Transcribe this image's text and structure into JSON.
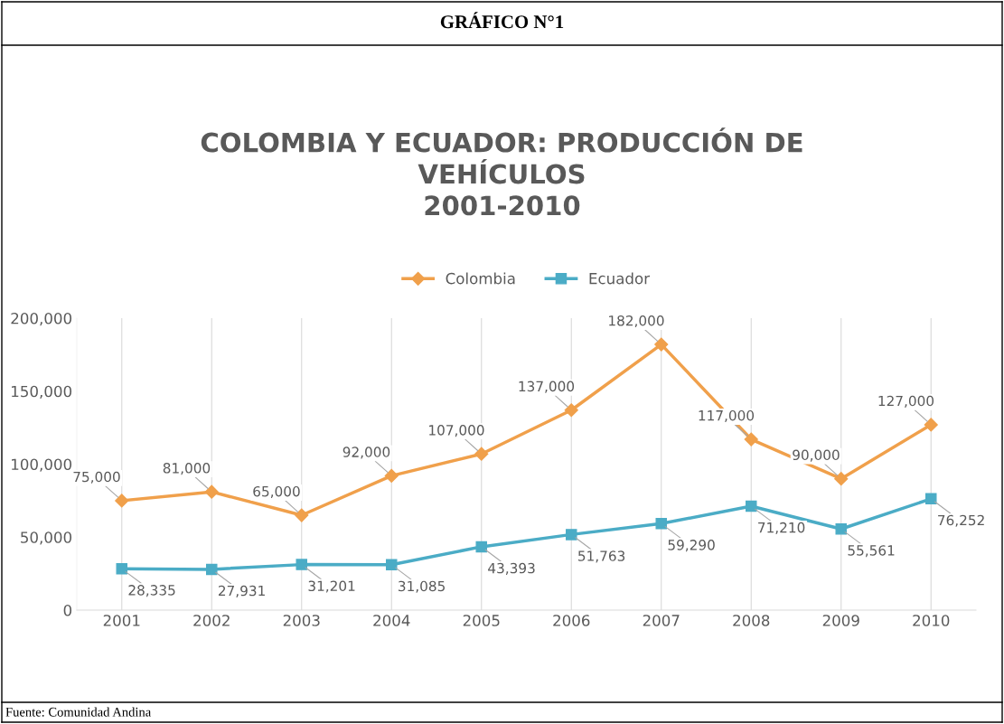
{
  "chart_data": {
    "type": "line",
    "title": "GRÁFICO N°1",
    "subtitle": "COLOMBIA Y ECUADOR: PRODUCCIÓN DE\nVEHÍCULOS\n2001-2010",
    "categories": [
      "2001",
      "2002",
      "2003",
      "2004",
      "2005",
      "2006",
      "2007",
      "2008",
      "2009",
      "2010"
    ],
    "series": [
      {
        "name": "Colombia",
        "color": "#f0a04b",
        "marker": "diamond",
        "values": [
          75000,
          81000,
          65000,
          92000,
          107000,
          137000,
          182000,
          117000,
          90000,
          127000
        ],
        "value_labels": [
          "75,000",
          "81,000",
          "65,000",
          "92,000",
          "107,000",
          "137,000",
          "182,000",
          "117,000",
          "90,000",
          "127,000"
        ]
      },
      {
        "name": "Ecuador",
        "color": "#4bacc6",
        "marker": "square",
        "values": [
          28335,
          27931,
          31201,
          31085,
          43393,
          51763,
          59290,
          71210,
          55561,
          76252
        ],
        "value_labels": [
          "28,335",
          "27,931",
          "31,201",
          "31,085",
          "43,393",
          "51,763",
          "59,290",
          "71,210",
          "55,561",
          "76,252"
        ]
      }
    ],
    "ylim": [
      0,
      200000
    ],
    "yticks": [
      0,
      {
        "value": 50000,
        "label": "50,000"
      },
      {
        "value": 100000,
        "label": "100,000"
      },
      {
        "value": 150000,
        "label": "150,000"
      },
      {
        "value": 200000,
        "label": "200,000"
      }
    ],
    "grid": "x",
    "legend": "top",
    "line_style": "solid",
    "annotations": [
      "Fuente: Comunidad Andina"
    ]
  }
}
